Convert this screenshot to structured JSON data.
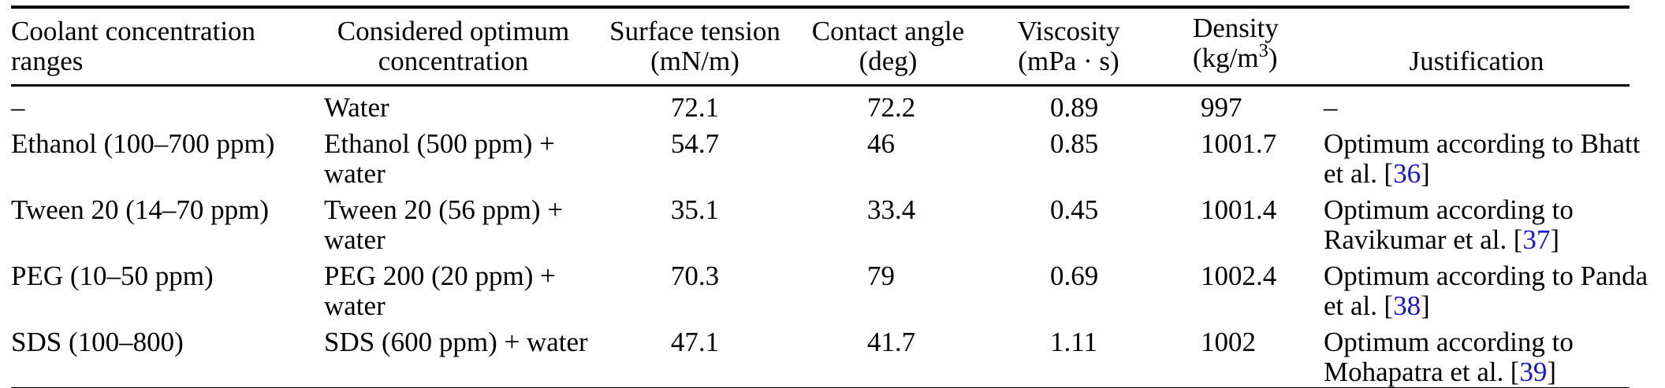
{
  "table": {
    "columns": {
      "coolant": {
        "line1": "Coolant concentration",
        "line2": "ranges"
      },
      "optimum": {
        "line1": "Considered optimum",
        "line2": "concentration"
      },
      "surface_tension": {
        "line1": "Surface tension",
        "line2": "(mN/m)"
      },
      "contact_angle": {
        "line1": "Contact angle",
        "line2": "(deg)"
      },
      "viscosity": {
        "line1": "Viscosity",
        "line2": "(mPa · s)"
      },
      "density": {
        "line1": "Density",
        "unit_prefix": "(kg/m",
        "unit_sup": "3",
        "unit_suffix": ")"
      },
      "justification": {
        "line1": "Justification"
      }
    },
    "rows": [
      {
        "coolant": "–",
        "optimum": {
          "line1": "Water"
        },
        "surface_tension": "72.1",
        "contact_angle": "72.2",
        "viscosity": "0.89",
        "density": "997",
        "justification": {
          "line1": "–"
        }
      },
      {
        "coolant": "Ethanol (100–700 ppm)",
        "optimum": {
          "line1": "Ethanol (500 ppm) +",
          "line2": "water"
        },
        "surface_tension": "54.7",
        "contact_angle": "46",
        "viscosity": "0.85",
        "density": "1001.7",
        "justification": {
          "line1": "Optimum according to Bhatt",
          "line2": "et al.",
          "ref": "36"
        }
      },
      {
        "coolant": "Tween 20 (14–70 ppm)",
        "optimum": {
          "line1": "Tween 20 (56 ppm) +",
          "line2": "water"
        },
        "surface_tension": "35.1",
        "contact_angle": "33.4",
        "viscosity": "0.45",
        "density": "1001.4",
        "justification": {
          "line1": "Optimum according to",
          "line2": "Ravikumar et al.",
          "ref": "37"
        }
      },
      {
        "coolant": "PEG (10–50 ppm)",
        "optimum": {
          "line1": "PEG 200 (20 ppm) +",
          "line2": "water"
        },
        "surface_tension": "70.3",
        "contact_angle": "79",
        "viscosity": "0.69",
        "density": "1002.4",
        "justification": {
          "line1": "Optimum according to Panda",
          "line2": "et al.",
          "ref": "38"
        }
      },
      {
        "coolant": "SDS (100–800)",
        "optimum": {
          "line1": "SDS (600 ppm) + water"
        },
        "surface_tension": "47.1",
        "contact_angle": "41.7",
        "viscosity": "1.11",
        "density": "1002",
        "justification": {
          "line1": "Optimum according to",
          "line2": "Mohapatra et al.",
          "ref": "39"
        }
      }
    ],
    "citation": {
      "open": "[",
      "close": "]"
    },
    "colors": {
      "text": "#000000",
      "citation_link": "#1414e6",
      "rule": "#000000",
      "background": "#ffffff"
    }
  }
}
